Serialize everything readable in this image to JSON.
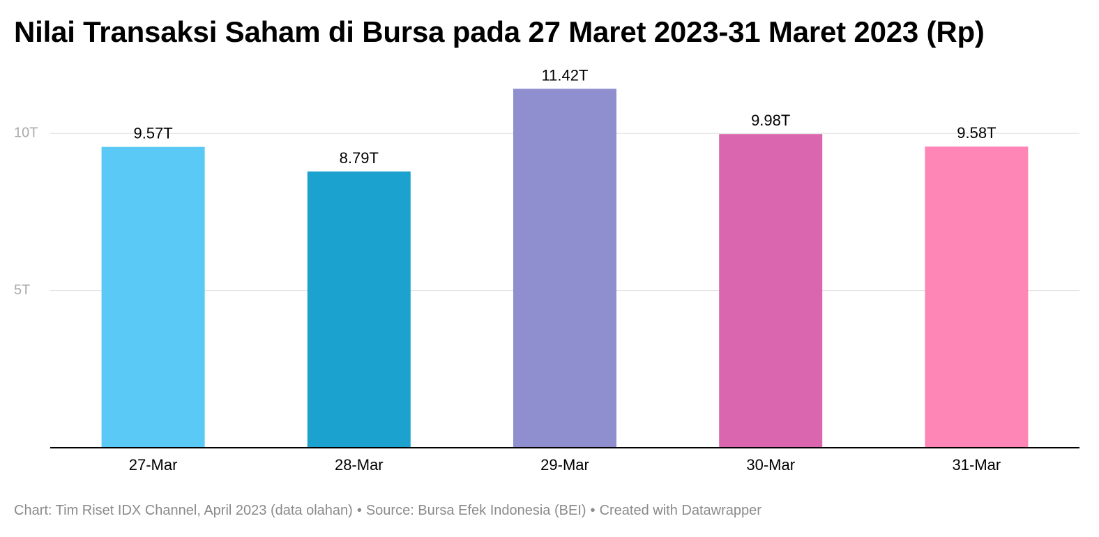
{
  "title": "Nilai Transaksi Saham di Bursa pada 27 Maret 2023-31 Maret 2023 (Rp)",
  "footer": {
    "credit": "Chart: Tim Riset IDX Channel, April 2023 (data olahan)",
    "separator": "•",
    "source": "Source: Bursa Efek Indonesia (BEI)",
    "created": "Created with Datawrapper"
  },
  "chart_data": {
    "type": "bar",
    "categories": [
      "27-Mar",
      "28-Mar",
      "29-Mar",
      "30-Mar",
      "31-Mar"
    ],
    "values": [
      9.57,
      8.79,
      11.42,
      9.98,
      9.58
    ],
    "value_labels": [
      "9.57T",
      "8.79T",
      "11.42T",
      "9.98T",
      "9.58T"
    ],
    "colors": [
      "#5bc9f5",
      "#1ba2ce",
      "#8f8fd0",
      "#d966ae",
      "#fe86b7"
    ],
    "yticks": [
      5,
      10
    ],
    "ytick_labels": [
      "5T",
      "10T"
    ],
    "ylim": [
      0,
      11.42
    ],
    "grid": true,
    "title": "Nilai Transaksi Saham di Bursa pada 27 Maret 2023-31 Maret 2023 (Rp)",
    "xlabel": "",
    "ylabel": ""
  },
  "colors": {
    "gridline": "#e0e0e0",
    "axis": "#000000",
    "tick_label": "#aaaaaa",
    "label": "#000000"
  }
}
